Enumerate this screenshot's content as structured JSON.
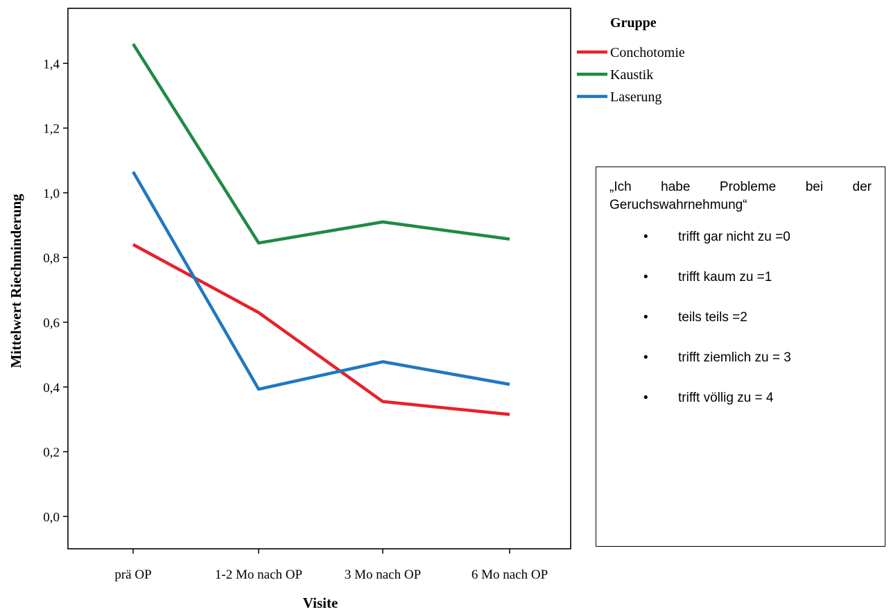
{
  "chart_data": {
    "type": "line",
    "title": "",
    "xlabel": "Visite",
    "ylabel": "Mittelwert Riechminderung",
    "categories": [
      "prä OP",
      "1-2 Mo nach OP",
      "3 Mo nach OP",
      "6 Mo nach OP"
    ],
    "ylim": [
      -0.1,
      1.57
    ],
    "yticks": [
      "0,0",
      "0,2",
      "0,4",
      "0,6",
      "0,8",
      "1,0",
      "1,2",
      "1,4"
    ],
    "ytick_values": [
      0.0,
      0.2,
      0.4,
      0.6,
      0.8,
      1.0,
      1.2,
      1.4
    ],
    "grid": false,
    "legend": {
      "title": "Gruppe",
      "placement": "right"
    },
    "series": [
      {
        "name": "Conchotomie",
        "color": "#e8202a",
        "values": [
          0.84,
          0.63,
          0.355,
          0.315
        ]
      },
      {
        "name": "Kaustik",
        "color": "#1f8a45",
        "values": [
          1.46,
          0.845,
          0.91,
          0.857
        ]
      },
      {
        "name": "Laserung",
        "color": "#1f78c1",
        "values": [
          1.065,
          0.393,
          0.478,
          0.408
        ]
      }
    ]
  },
  "note": {
    "question_line1": "„Ich habe Probleme bei der",
    "question_line2": "Geruchswahrnehmung“",
    "bullet": "•",
    "items": [
      "trifft gar nicht zu =0",
      "trifft kaum zu =1",
      "teils teils =2",
      "trifft ziemlich zu = 3",
      "trifft völlig zu = 4"
    ]
  }
}
